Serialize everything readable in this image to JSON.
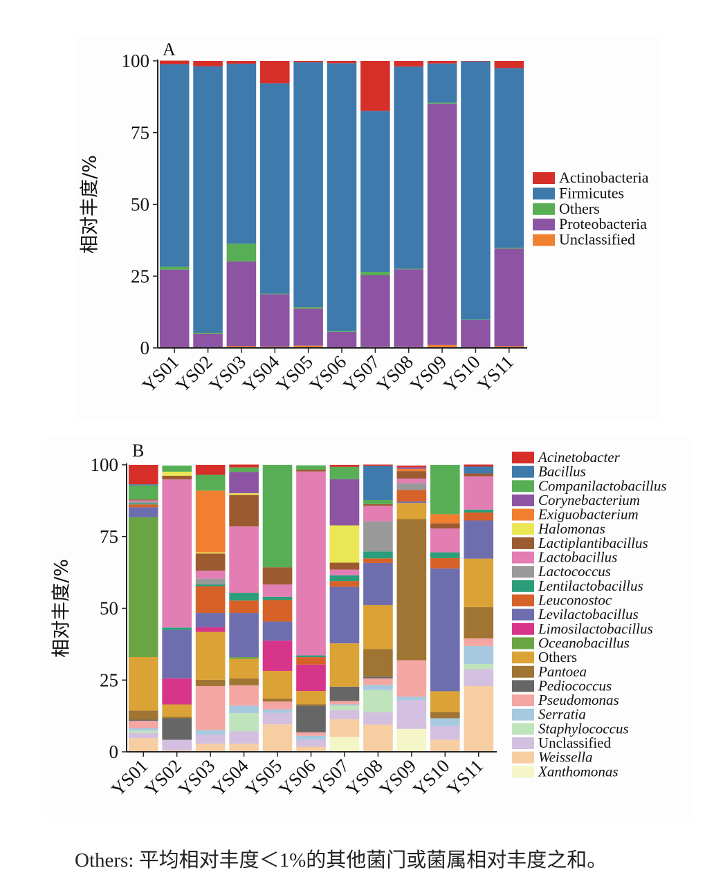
{
  "caption": "Others: 平均相对丰度＜1%的其他菌门或菌属相对丰度之和。",
  "chart_data": [
    {
      "type": "bar",
      "stacked": true,
      "panel_label": "A",
      "ylabel": "相对丰度/%",
      "ylim": [
        0,
        100
      ],
      "yticks": [
        "0",
        "25",
        "50",
        "75",
        "100"
      ],
      "legend_position": "right",
      "categories": [
        "YS01",
        "YS02",
        "YS03",
        "YS04",
        "YS05",
        "YS06",
        "YS07",
        "YS08",
        "YS09",
        "YS10",
        "YS11"
      ],
      "series": [
        {
          "name": "Actinobacteria",
          "color": "#d62f2a",
          "values": [
            1.3,
            1.9,
            1.0,
            7.8,
            0.5,
            0.8,
            17.4,
            2.0,
            0.9,
            0.2,
            2.5
          ]
        },
        {
          "name": "Firmicutes",
          "color": "#3f7aad",
          "values": [
            70.5,
            92.8,
            62.7,
            73.3,
            85.3,
            93.3,
            56.1,
            70.4,
            13.7,
            89.9,
            62.6
          ]
        },
        {
          "name": "Others",
          "color": "#57ae55",
          "values": [
            1.0,
            0.4,
            6.2,
            0.2,
            0.5,
            0.3,
            1.2,
            0.2,
            0.3,
            0.2,
            0.3
          ]
        },
        {
          "name": "Proteobacteria",
          "color": "#8c54a3",
          "values": [
            27.1,
            4.8,
            29.5,
            18.3,
            12.9,
            5.4,
            25.0,
            27.1,
            84.1,
            9.5,
            34.0
          ]
        },
        {
          "name": "Unclassified",
          "color": "#f07f30",
          "values": [
            0.2,
            0.1,
            0.6,
            0.4,
            0.8,
            0.2,
            0.3,
            0.3,
            1.0,
            0.2,
            0.6
          ]
        }
      ]
    },
    {
      "type": "bar",
      "stacked": true,
      "panel_label": "B",
      "ylabel": "相对丰度/%",
      "ylim": [
        0,
        100
      ],
      "yticks": [
        "0",
        "25",
        "50",
        "75",
        "100"
      ],
      "legend_position": "right",
      "categories": [
        "YS01",
        "YS02",
        "YS03",
        "YS04",
        "YS05",
        "YS06",
        "YS07",
        "YS08",
        "YS09",
        "YS10",
        "YS11"
      ],
      "series": [
        {
          "name": "Acinetobacter",
          "color": "#d62f2a",
          "values": [
            6.8,
            0,
            3.5,
            1.0,
            0,
            0,
            0.7,
            0.5,
            0.6,
            0,
            0.7
          ]
        },
        {
          "name": "Bacillus",
          "color": "#3f7aad",
          "values": [
            0.4,
            0,
            0,
            0,
            0,
            0,
            0,
            11.9,
            0,
            0,
            2.4
          ]
        },
        {
          "name": "Companilactobacillus",
          "color": "#57ae55",
          "values": [
            4.9,
            2.1,
            5.5,
            1.6,
            35.7,
            1.5,
            4.3,
            1.4,
            0,
            17.2,
            0
          ]
        },
        {
          "name": "Corynebacterium",
          "color": "#8c54a3",
          "values": [
            0,
            0,
            0,
            7.4,
            0,
            0,
            16.1,
            0,
            0.5,
            0,
            0
          ]
        },
        {
          "name": "Exiguobacterium",
          "color": "#f07f30",
          "values": [
            0,
            0,
            21.5,
            0,
            0,
            0,
            0,
            0,
            0.8,
            3.2,
            0
          ]
        },
        {
          "name": "Halomonas",
          "color": "#ebe654",
          "values": [
            0,
            1.4,
            0.4,
            0.6,
            0,
            0,
            13.0,
            0,
            0,
            0,
            0
          ]
        },
        {
          "name": "Lactiplantibacillus",
          "color": "#9c5a30",
          "values": [
            0.3,
            1.3,
            6.0,
            11.0,
            6.0,
            0.6,
            2.4,
            0.6,
            2.6,
            1.8,
            1.0
          ]
        },
        {
          "name": "Lactobacillus",
          "color": "#e27eb4",
          "values": [
            0.5,
            51.6,
            2.8,
            23.1,
            4.3,
            64.1,
            2.0,
            5.4,
            1.6,
            8.3,
            11.6
          ]
        },
        {
          "name": "Lactococcus",
          "color": "#999999",
          "values": [
            0.5,
            0,
            2.0,
            0,
            0,
            0,
            0,
            10.5,
            2.4,
            0,
            0
          ]
        },
        {
          "name": "Lentilactobacillus",
          "color": "#2a9e7a",
          "values": [
            0.4,
            0.8,
            0.6,
            2.7,
            1.1,
            0.6,
            2.0,
            2.4,
            0,
            2.0,
            1.0
          ]
        },
        {
          "name": "Leuconostoc",
          "color": "#d6622a",
          "values": [
            1.0,
            0,
            9.3,
            4.3,
            7.5,
            2.6,
            2.0,
            1.6,
            4.0,
            3.6,
            2.8
          ]
        },
        {
          "name": "Levilactobacillus",
          "color": "#6e6eaf",
          "values": [
            3.5,
            16.9,
            5.0,
            15.4,
            6.7,
            0,
            19.7,
            14.7,
            0.5,
            42.8,
            13.3
          ]
        },
        {
          "name": "Limosilactobacillus",
          "color": "#d6358a",
          "values": [
            0,
            9.1,
            1.6,
            0,
            10.5,
            9.2,
            0,
            0,
            0,
            0,
            0
          ]
        },
        {
          "name": "Oceanobacillus",
          "color": "#6aa544",
          "values": [
            48.7,
            0,
            0,
            0.6,
            0,
            0,
            0,
            0,
            0,
            0,
            0
          ]
        },
        {
          "name": "Others",
          "color": "#dba235",
          "values": [
            18.6,
            4.3,
            16.7,
            6.8,
            9.6,
            4.6,
            15.1,
            15.3,
            5.6,
            7.2,
            16.9
          ]
        },
        {
          "name": "Pantoea",
          "color": "#a07432",
          "values": [
            3.2,
            0.5,
            2.2,
            2.4,
            1.1,
            0.6,
            0,
            9.6,
            49.2,
            2.2,
            10.9
          ]
        },
        {
          "name": "Pediococcus",
          "color": "#666666",
          "values": [
            0.4,
            7.5,
            0,
            0,
            0,
            9.2,
            5.0,
            0.6,
            0,
            0,
            0
          ]
        },
        {
          "name": "Pseudomonas",
          "color": "#f4a6a3",
          "values": [
            2.6,
            0,
            15.3,
            7.1,
            2.7,
            1.2,
            1.2,
            2.3,
            12.7,
            0,
            2.6
          ]
        },
        {
          "name": "Serratia",
          "color": "#a6c9e0",
          "values": [
            0.8,
            0,
            1.6,
            2.6,
            1.2,
            1.4,
            0.4,
            1.8,
            1.2,
            2.7,
            6.3
          ]
        },
        {
          "name": "Staphylococcus",
          "color": "#bfe3bb",
          "values": [
            0.8,
            0,
            0,
            6.3,
            0,
            0,
            1.6,
            7.7,
            0,
            0,
            1.8
          ]
        },
        {
          "name": "Unclassified",
          "color": "#d3bfdf",
          "values": [
            1.8,
            3.7,
            3.2,
            4.4,
            4.0,
            2.4,
            3.1,
            4.3,
            10.0,
            4.8,
            5.9
          ]
        },
        {
          "name": "Weissella",
          "color": "#f7cda2",
          "values": [
            4.8,
            0.5,
            2.8,
            2.8,
            9.6,
            1.8,
            6.2,
            9.5,
            0,
            4.2,
            22.9
          ]
        },
        {
          "name": "Xanthomonas",
          "color": "#f5f6c8",
          "values": [
            0,
            0,
            0,
            0,
            0,
            0,
            5.2,
            0,
            8.0,
            0,
            0
          ]
        }
      ]
    }
  ]
}
